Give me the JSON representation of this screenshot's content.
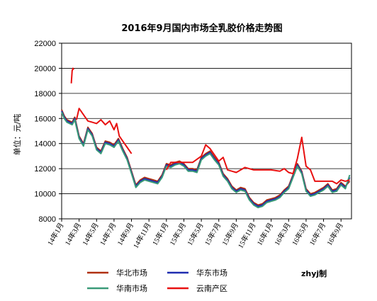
{
  "chart_data": {
    "type": "line",
    "title": "2016年9月国内市场全乳胶价格走势图",
    "ylabel": "单位：元/吨",
    "ylim": [
      8000,
      22000
    ],
    "yticks": [
      "8000",
      "10000",
      "12000",
      "14000",
      "16000",
      "18000",
      "20000",
      "22000"
    ],
    "xticks": [
      "14年1月",
      "14年3月",
      "14年5月",
      "14年7月",
      "14年9月",
      "14年11月",
      "15年1月",
      "15年3月",
      "15年5月",
      "15年7月",
      "15年9月",
      "15年11月",
      "16年1月",
      "16年3月",
      "16年5月",
      "16年7月",
      "16年9月"
    ],
    "xrange": [
      0,
      33.2
    ],
    "grid": true,
    "legend_position": "bottom",
    "watermark": "zhyj制",
    "series": [
      {
        "name": "华北市场",
        "color": "#b03010",
        "x": [
          0,
          0.3,
          0.6,
          0.9,
          1.2,
          1.5,
          2.0,
          2.5,
          3.0,
          3.5,
          4.0,
          4.5,
          5.0,
          5.5,
          6.0,
          6.5,
          7.0,
          7.5,
          8.0,
          8.5,
          9.0,
          9.5,
          10.0,
          10.5,
          11.0,
          11.5,
          12.0,
          12.5,
          13.0,
          13.5,
          14.0,
          14.5,
          15.0,
          15.5,
          16.0,
          16.5,
          17.0,
          17.5,
          18.0,
          18.5,
          19.0,
          19.5,
          20.0,
          20.5,
          21.0,
          21.5,
          22.0,
          22.5,
          23.0,
          23.5,
          24.0,
          24.5,
          25.0,
          25.5,
          26.0,
          26.5,
          27.0,
          27.5,
          28.0,
          28.5,
          29.0,
          29.5,
          30.0,
          30.5,
          31.0,
          31.5,
          32.0,
          32.5,
          33.0
        ],
        "values": [
          16700,
          16200,
          15900,
          15800,
          15700,
          16100,
          14600,
          14000,
          15300,
          14800,
          13700,
          13400,
          14200,
          14100,
          13900,
          14400,
          13600,
          12900,
          11800,
          10700,
          11100,
          11300,
          11200,
          11100,
          11000,
          11500,
          12400,
          12300,
          12500,
          12600,
          12400,
          12000,
          12000,
          11900,
          12900,
          13200,
          13400,
          12900,
          12500,
          11600,
          11200,
          10600,
          10300,
          10500,
          10400,
          9700,
          9300,
          9100,
          9200,
          9500,
          9600,
          9700,
          9900,
          10300,
          10600,
          11500,
          12400,
          11800,
          10400,
          10000,
          10100,
          10300,
          10500,
          10800,
          10300,
          10400,
          10900,
          10600,
          11000
        ]
      },
      {
        "name": "华东市场",
        "color": "#1f2db0",
        "x": [
          0,
          0.3,
          0.6,
          0.9,
          1.2,
          1.5,
          2.0,
          2.5,
          3.0,
          3.5,
          4.0,
          4.5,
          5.0,
          5.5,
          6.0,
          6.5,
          7.0,
          7.5,
          8.0,
          8.5,
          9.0,
          9.5,
          10.0,
          10.5,
          11.0,
          11.5,
          12.0,
          12.5,
          13.0,
          13.5,
          14.0,
          14.5,
          15.0,
          15.5,
          16.0,
          16.5,
          17.0,
          17.5,
          18.0,
          18.5,
          19.0,
          19.5,
          20.0,
          20.5,
          21.0,
          21.5,
          22.0,
          22.5,
          23.0,
          23.5,
          24.0,
          24.5,
          25.0,
          25.5,
          26.0,
          26.5,
          27.0,
          27.5,
          28.0,
          28.5,
          29.0,
          29.5,
          30.0,
          30.5,
          31.0,
          31.5,
          32.0,
          32.5,
          33.0
        ],
        "values": [
          16600,
          16100,
          15800,
          15700,
          15600,
          16000,
          14500,
          13900,
          15200,
          14700,
          13600,
          13300,
          14100,
          14000,
          13800,
          14300,
          13500,
          12800,
          11700,
          10600,
          11000,
          11200,
          11100,
          11000,
          10900,
          11400,
          12300,
          12200,
          12400,
          12500,
          12300,
          11900,
          11900,
          11800,
          12800,
          13100,
          13300,
          12800,
          12400,
          11500,
          11100,
          10500,
          10200,
          10400,
          10300,
          9600,
          9200,
          9000,
          9100,
          9400,
          9500,
          9600,
          9800,
          10200,
          10500,
          11400,
          12300,
          11700,
          10300,
          9900,
          10000,
          10200,
          10400,
          10700,
          10200,
          10300,
          10800,
          10500,
          11300
        ]
      },
      {
        "name": "华南市场",
        "color": "#3a9a78",
        "x": [
          0,
          0.3,
          0.6,
          0.9,
          1.2,
          1.5,
          2.0,
          2.5,
          3.0,
          3.5,
          4.0,
          4.5,
          5.0,
          5.5,
          6.0,
          6.5,
          7.0,
          7.5,
          8.0,
          8.5,
          9.0,
          9.5,
          10.0,
          10.5,
          11.0,
          11.5,
          12.0,
          12.5,
          13.0,
          13.5,
          14.0,
          14.5,
          15.0,
          15.5,
          16.0,
          16.5,
          17.0,
          17.5,
          18.0,
          18.5,
          19.0,
          19.5,
          20.0,
          20.5,
          21.0,
          21.5,
          22.0,
          22.5,
          23.0,
          23.5,
          24.0,
          24.5,
          25.0,
          25.5,
          26.0,
          26.5,
          27.0,
          27.5,
          28.0,
          28.5,
          29.0,
          29.5,
          30.0,
          30.5,
          31.0,
          31.5,
          32.0,
          32.5,
          33.0
        ],
        "values": [
          16500,
          16000,
          15700,
          15600,
          15500,
          15900,
          14400,
          13800,
          15100,
          14600,
          13500,
          13200,
          14000,
          13900,
          13700,
          14200,
          13400,
          12700,
          11600,
          10500,
          10900,
          11100,
          11000,
          10900,
          10800,
          11300,
          12200,
          12100,
          12300,
          12400,
          12200,
          11800,
          11800,
          11700,
          12700,
          13000,
          13200,
          12700,
          12300,
          11400,
          11000,
          10400,
          10100,
          10300,
          10200,
          9500,
          9100,
          8900,
          9000,
          9300,
          9400,
          9500,
          9700,
          10100,
          10400,
          11300,
          12200,
          11600,
          10200,
          9800,
          9900,
          10100,
          10300,
          10600,
          10100,
          10200,
          10700,
          10400,
          11500
        ]
      },
      {
        "name": "云南产区",
        "color": "#e81010",
        "x": [
          0,
          0.3,
          1.0,
          1.1,
          1.2,
          1.3,
          1.4,
          1.6,
          1.7,
          2.0,
          3.0,
          3.5,
          4.0,
          4.5,
          5.0,
          5.5,
          6.0,
          6.3,
          6.6,
          7.0,
          7.5,
          8.0,
          8.3,
          9.0,
          9.1,
          12.0,
          12.5,
          13.0,
          14.0,
          14.5,
          15.0,
          16.0,
          16.5,
          17.0,
          17.5,
          18.0,
          18.5,
          19.0,
          19.5,
          20.0,
          21.0,
          22.0,
          23.0,
          24.0,
          25.0,
          25.5,
          26.0,
          26.5,
          27.0,
          27.5,
          28.0,
          28.5,
          29.0,
          29.5,
          30.0,
          30.5,
          31.0,
          31.5,
          32.0,
          32.5,
          33.0
        ],
        "values": [
          18500,
          null,
          null,
          18800,
          19800,
          20000,
          19900,
          null,
          15900,
          16800,
          15800,
          15700,
          15600,
          15900,
          15500,
          15800,
          15100,
          15600,
          14600,
          14200,
          13700,
          13200,
          null,
          12700,
          null,
          11900,
          12500,
          12500,
          12500,
          12500,
          12500,
          13000,
          13900,
          13600,
          13100,
          12600,
          12900,
          11900,
          11800,
          11700,
          12100,
          11900,
          11900,
          11900,
          11800,
          12000,
          11700,
          11600,
          12800,
          14500,
          12200,
          11900,
          11000,
          11000,
          11000,
          11000,
          11000,
          10800,
          11100,
          11000,
          11100
        ]
      }
    ]
  }
}
